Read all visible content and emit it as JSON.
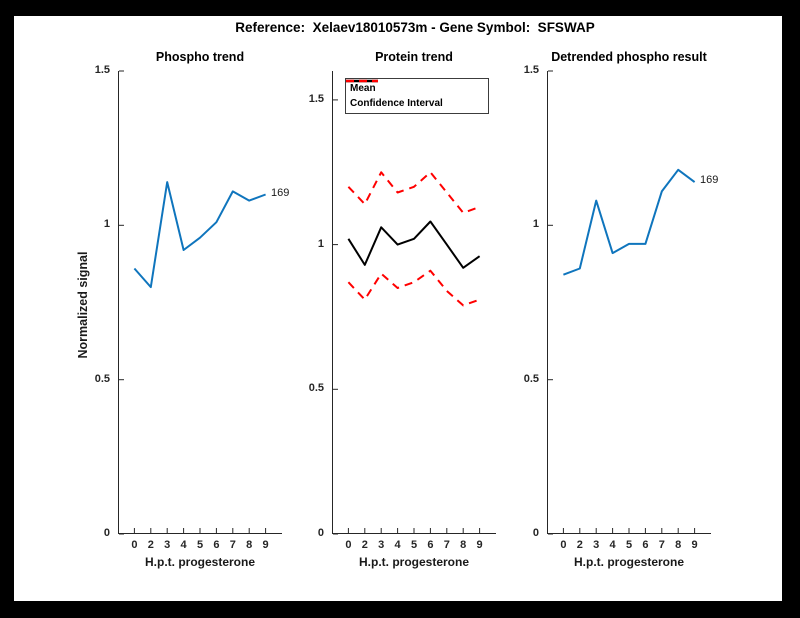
{
  "title": "Reference:  Xelaev18010573m - Gene Symbol:  SFSWAP",
  "axis_color": "#262626",
  "chart_data": [
    {
      "type": "line",
      "title": "Phospho trend",
      "xlabel": "H.p.t. progesterone",
      "ylabel": "Normalized signal",
      "categories": [
        "0",
        "2",
        "3",
        "4",
        "5",
        "6",
        "7",
        "8",
        "9"
      ],
      "ylim": [
        0,
        1.5
      ],
      "ytick_labels": [
        "0",
        "0.5",
        "1",
        "1.5"
      ],
      "ytick_values": [
        0,
        0.5,
        1,
        1.5
      ],
      "grid": false,
      "series": [
        {
          "color": "#0F75BD",
          "style": "solid",
          "values": [
            0.86,
            0.8,
            1.14,
            0.92,
            0.96,
            1.01,
            1.11,
            1.08,
            1.1
          ]
        }
      ],
      "end_label": "169"
    },
    {
      "type": "line",
      "title": "Protein trend",
      "xlabel": "H.p.t. progesterone",
      "categories": [
        "0",
        "2",
        "3",
        "4",
        "5",
        "6",
        "7",
        "8",
        "9"
      ],
      "ylim": [
        0,
        1.6
      ],
      "ytick_labels": [
        "0",
        "0.5",
        "1",
        "1.5"
      ],
      "ytick_values": [
        0,
        0.5,
        1,
        1.5
      ],
      "grid": false,
      "series": [
        {
          "name": "Mean",
          "color": "#000000",
          "style": "solid",
          "values": [
            1.02,
            0.93,
            1.06,
            1.0,
            1.02,
            1.08,
            1.0,
            0.92,
            0.96
          ]
        },
        {
          "name": "Confidence Interval",
          "color": "#FF0000",
          "style": "dashed",
          "values": [
            1.2,
            1.14,
            1.25,
            1.18,
            1.2,
            1.25,
            1.18,
            1.11,
            1.13
          ]
        },
        {
          "name": "Confidence Interval",
          "color": "#FF0000",
          "style": "dashed",
          "values": [
            0.87,
            0.81,
            0.9,
            0.85,
            0.87,
            0.91,
            0.84,
            0.79,
            0.81
          ]
        }
      ],
      "legend": {
        "position": "top-left",
        "entries": [
          {
            "label": "Mean",
            "color": "#000000",
            "style": "solid"
          },
          {
            "label": "Confidence Interval",
            "color": "#FF0000",
            "style": "dashed"
          }
        ]
      }
    },
    {
      "type": "line",
      "title": "Detrended phospho result",
      "xlabel": "H.p.t. progesterone",
      "categories": [
        "0",
        "2",
        "3",
        "4",
        "5",
        "6",
        "7",
        "8",
        "9"
      ],
      "ylim": [
        0,
        1.5
      ],
      "ytick_labels": [
        "0",
        "0.5",
        "1",
        "1.5"
      ],
      "ytick_values": [
        0,
        0.5,
        1,
        1.5
      ],
      "grid": false,
      "series": [
        {
          "color": "#0F75BD",
          "style": "solid",
          "values": [
            0.84,
            0.86,
            1.08,
            0.91,
            0.94,
            0.94,
            1.11,
            1.18,
            1.14
          ]
        }
      ],
      "end_label": "169"
    }
  ]
}
